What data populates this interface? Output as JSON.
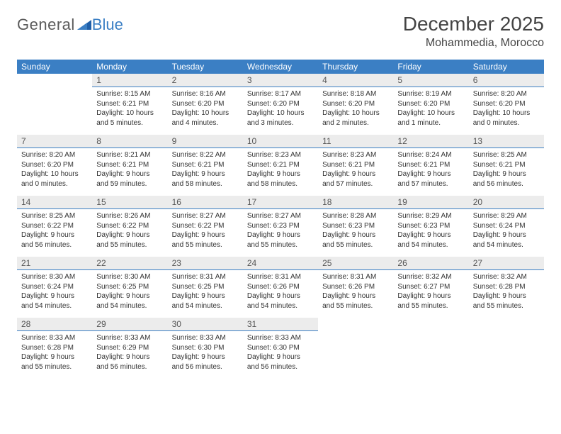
{
  "logo": {
    "text1": "General",
    "text2": "Blue"
  },
  "title": "December 2025",
  "location": "Mohammedia, Morocco",
  "colors": {
    "header_bg": "#3b7fc4",
    "header_fg": "#ffffff",
    "daynum_bg": "#ececec",
    "daynum_border": "#3b7fc4",
    "text": "#333333"
  },
  "dow": [
    "Sunday",
    "Monday",
    "Tuesday",
    "Wednesday",
    "Thursday",
    "Friday",
    "Saturday"
  ],
  "weeks": [
    [
      {
        "n": "",
        "lines": []
      },
      {
        "n": "1",
        "lines": [
          "Sunrise: 8:15 AM",
          "Sunset: 6:21 PM",
          "Daylight: 10 hours and 5 minutes."
        ]
      },
      {
        "n": "2",
        "lines": [
          "Sunrise: 8:16 AM",
          "Sunset: 6:20 PM",
          "Daylight: 10 hours and 4 minutes."
        ]
      },
      {
        "n": "3",
        "lines": [
          "Sunrise: 8:17 AM",
          "Sunset: 6:20 PM",
          "Daylight: 10 hours and 3 minutes."
        ]
      },
      {
        "n": "4",
        "lines": [
          "Sunrise: 8:18 AM",
          "Sunset: 6:20 PM",
          "Daylight: 10 hours and 2 minutes."
        ]
      },
      {
        "n": "5",
        "lines": [
          "Sunrise: 8:19 AM",
          "Sunset: 6:20 PM",
          "Daylight: 10 hours and 1 minute."
        ]
      },
      {
        "n": "6",
        "lines": [
          "Sunrise: 8:20 AM",
          "Sunset: 6:20 PM",
          "Daylight: 10 hours and 0 minutes."
        ]
      }
    ],
    [
      {
        "n": "7",
        "lines": [
          "Sunrise: 8:20 AM",
          "Sunset: 6:20 PM",
          "Daylight: 10 hours and 0 minutes."
        ]
      },
      {
        "n": "8",
        "lines": [
          "Sunrise: 8:21 AM",
          "Sunset: 6:21 PM",
          "Daylight: 9 hours and 59 minutes."
        ]
      },
      {
        "n": "9",
        "lines": [
          "Sunrise: 8:22 AM",
          "Sunset: 6:21 PM",
          "Daylight: 9 hours and 58 minutes."
        ]
      },
      {
        "n": "10",
        "lines": [
          "Sunrise: 8:23 AM",
          "Sunset: 6:21 PM",
          "Daylight: 9 hours and 58 minutes."
        ]
      },
      {
        "n": "11",
        "lines": [
          "Sunrise: 8:23 AM",
          "Sunset: 6:21 PM",
          "Daylight: 9 hours and 57 minutes."
        ]
      },
      {
        "n": "12",
        "lines": [
          "Sunrise: 8:24 AM",
          "Sunset: 6:21 PM",
          "Daylight: 9 hours and 57 minutes."
        ]
      },
      {
        "n": "13",
        "lines": [
          "Sunrise: 8:25 AM",
          "Sunset: 6:21 PM",
          "Daylight: 9 hours and 56 minutes."
        ]
      }
    ],
    [
      {
        "n": "14",
        "lines": [
          "Sunrise: 8:25 AM",
          "Sunset: 6:22 PM",
          "Daylight: 9 hours and 56 minutes."
        ]
      },
      {
        "n": "15",
        "lines": [
          "Sunrise: 8:26 AM",
          "Sunset: 6:22 PM",
          "Daylight: 9 hours and 55 minutes."
        ]
      },
      {
        "n": "16",
        "lines": [
          "Sunrise: 8:27 AM",
          "Sunset: 6:22 PM",
          "Daylight: 9 hours and 55 minutes."
        ]
      },
      {
        "n": "17",
        "lines": [
          "Sunrise: 8:27 AM",
          "Sunset: 6:23 PM",
          "Daylight: 9 hours and 55 minutes."
        ]
      },
      {
        "n": "18",
        "lines": [
          "Sunrise: 8:28 AM",
          "Sunset: 6:23 PM",
          "Daylight: 9 hours and 55 minutes."
        ]
      },
      {
        "n": "19",
        "lines": [
          "Sunrise: 8:29 AM",
          "Sunset: 6:23 PM",
          "Daylight: 9 hours and 54 minutes."
        ]
      },
      {
        "n": "20",
        "lines": [
          "Sunrise: 8:29 AM",
          "Sunset: 6:24 PM",
          "Daylight: 9 hours and 54 minutes."
        ]
      }
    ],
    [
      {
        "n": "21",
        "lines": [
          "Sunrise: 8:30 AM",
          "Sunset: 6:24 PM",
          "Daylight: 9 hours and 54 minutes."
        ]
      },
      {
        "n": "22",
        "lines": [
          "Sunrise: 8:30 AM",
          "Sunset: 6:25 PM",
          "Daylight: 9 hours and 54 minutes."
        ]
      },
      {
        "n": "23",
        "lines": [
          "Sunrise: 8:31 AM",
          "Sunset: 6:25 PM",
          "Daylight: 9 hours and 54 minutes."
        ]
      },
      {
        "n": "24",
        "lines": [
          "Sunrise: 8:31 AM",
          "Sunset: 6:26 PM",
          "Daylight: 9 hours and 54 minutes."
        ]
      },
      {
        "n": "25",
        "lines": [
          "Sunrise: 8:31 AM",
          "Sunset: 6:26 PM",
          "Daylight: 9 hours and 55 minutes."
        ]
      },
      {
        "n": "26",
        "lines": [
          "Sunrise: 8:32 AM",
          "Sunset: 6:27 PM",
          "Daylight: 9 hours and 55 minutes."
        ]
      },
      {
        "n": "27",
        "lines": [
          "Sunrise: 8:32 AM",
          "Sunset: 6:28 PM",
          "Daylight: 9 hours and 55 minutes."
        ]
      }
    ],
    [
      {
        "n": "28",
        "lines": [
          "Sunrise: 8:33 AM",
          "Sunset: 6:28 PM",
          "Daylight: 9 hours and 55 minutes."
        ]
      },
      {
        "n": "29",
        "lines": [
          "Sunrise: 8:33 AM",
          "Sunset: 6:29 PM",
          "Daylight: 9 hours and 56 minutes."
        ]
      },
      {
        "n": "30",
        "lines": [
          "Sunrise: 8:33 AM",
          "Sunset: 6:30 PM",
          "Daylight: 9 hours and 56 minutes."
        ]
      },
      {
        "n": "31",
        "lines": [
          "Sunrise: 8:33 AM",
          "Sunset: 6:30 PM",
          "Daylight: 9 hours and 56 minutes."
        ]
      },
      {
        "n": "",
        "lines": []
      },
      {
        "n": "",
        "lines": []
      },
      {
        "n": "",
        "lines": []
      }
    ]
  ]
}
